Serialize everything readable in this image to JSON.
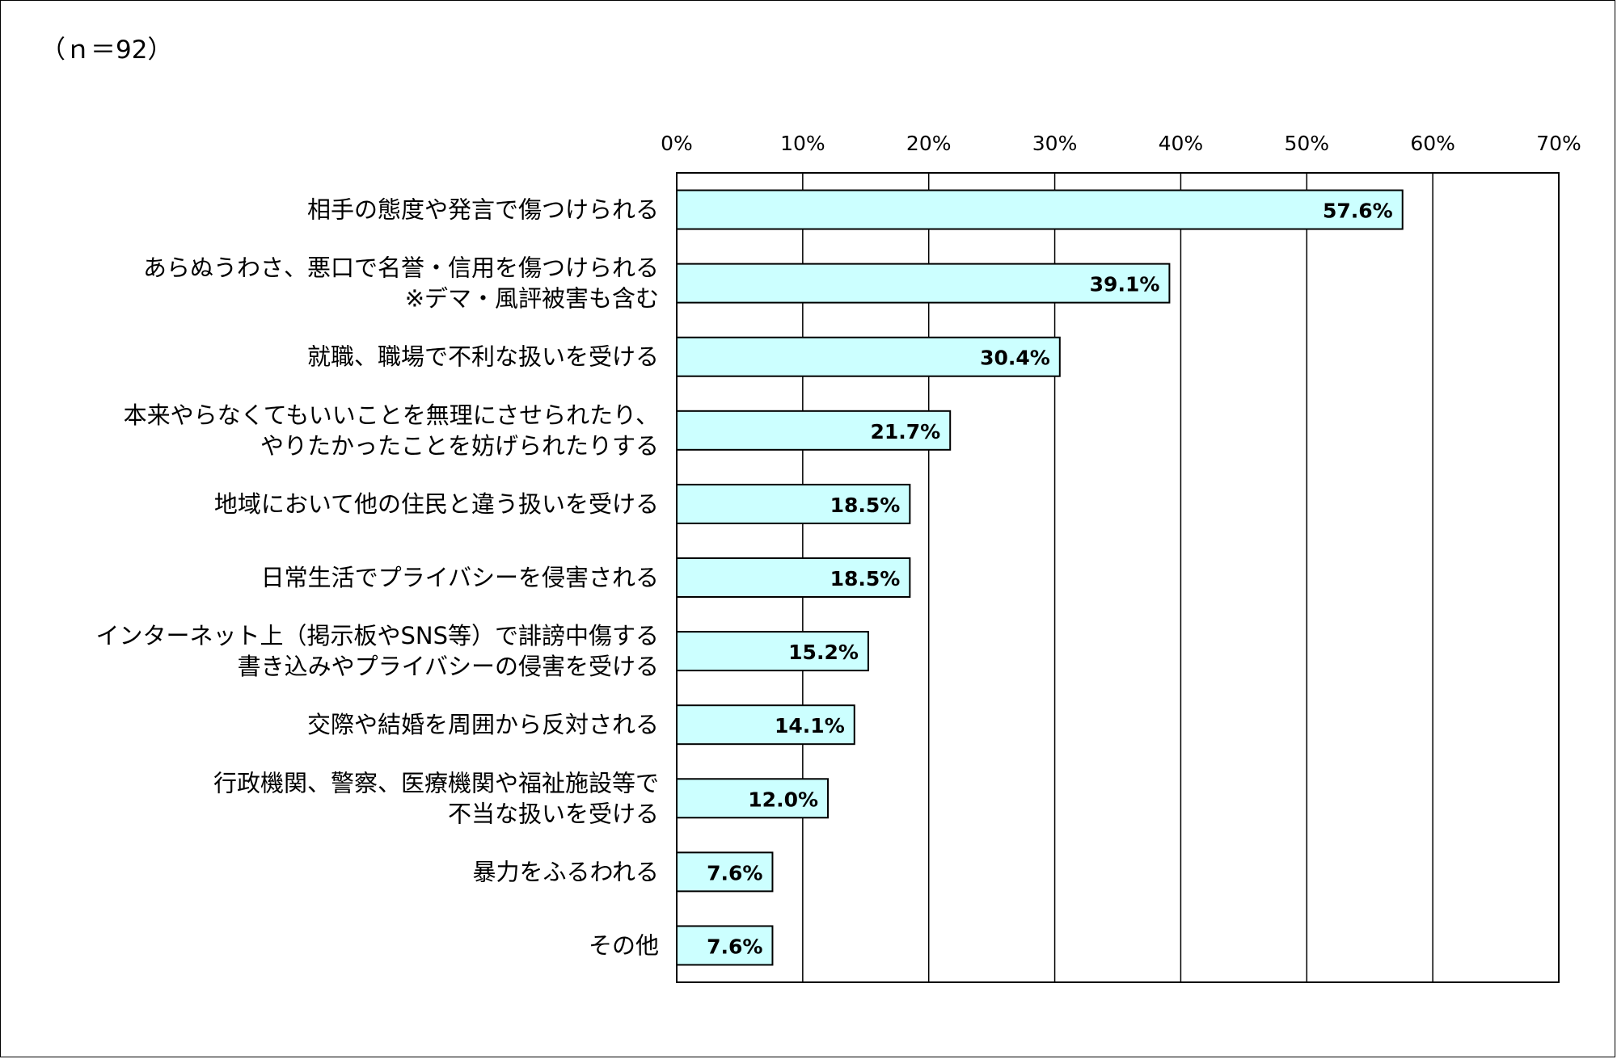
{
  "note": "（ｎ＝92）",
  "colors": {
    "bar_fill": "#CCFFFF",
    "bar_stroke": "#000000",
    "grid": "#000000",
    "background": "#FFFFFF"
  },
  "chart_data": {
    "type": "bar",
    "orientation": "horizontal",
    "title": "",
    "xlabel": "",
    "ylabel": "",
    "xlim": [
      0,
      70
    ],
    "ticks": [
      "0%",
      "10%",
      "20%",
      "30%",
      "40%",
      "50%",
      "60%",
      "70%"
    ],
    "tick_values": [
      0,
      10,
      20,
      30,
      40,
      50,
      60,
      70
    ],
    "grid": true,
    "categories": [
      [
        "相手の態度や発言で傷つけられる"
      ],
      [
        "あらぬうわさ、悪口で名誉・信用を傷つけられる",
        "※デマ・風評被害も含む"
      ],
      [
        "就職、職場で不利な扱いを受ける"
      ],
      [
        "本来やらなくてもいいことを無理にさせられたり、",
        "やりたかったことを妨げられたりする"
      ],
      [
        "地域において他の住民と違う扱いを受ける"
      ],
      [
        "日常生活でプライバシーを侵害される"
      ],
      [
        "インターネット上（掲示板やSNS等）で誹謗中傷する",
        "書き込みやプライバシーの侵害を受ける"
      ],
      [
        "交際や結婚を周囲から反対される"
      ],
      [
        "行政機関、警察、医療機関や福祉施設等で",
        "不当な扱いを受ける"
      ],
      [
        "暴力をふるわれる"
      ],
      [
        "その他"
      ]
    ],
    "values": [
      57.6,
      39.1,
      30.4,
      21.7,
      18.5,
      18.5,
      15.2,
      14.1,
      12.0,
      7.6,
      7.6
    ],
    "value_labels": [
      "57.6%",
      "39.1%",
      "30.4%",
      "21.7%",
      "18.5%",
      "18.5%",
      "15.2%",
      "14.1%",
      "12.0%",
      "7.6%",
      "7.6%"
    ]
  }
}
